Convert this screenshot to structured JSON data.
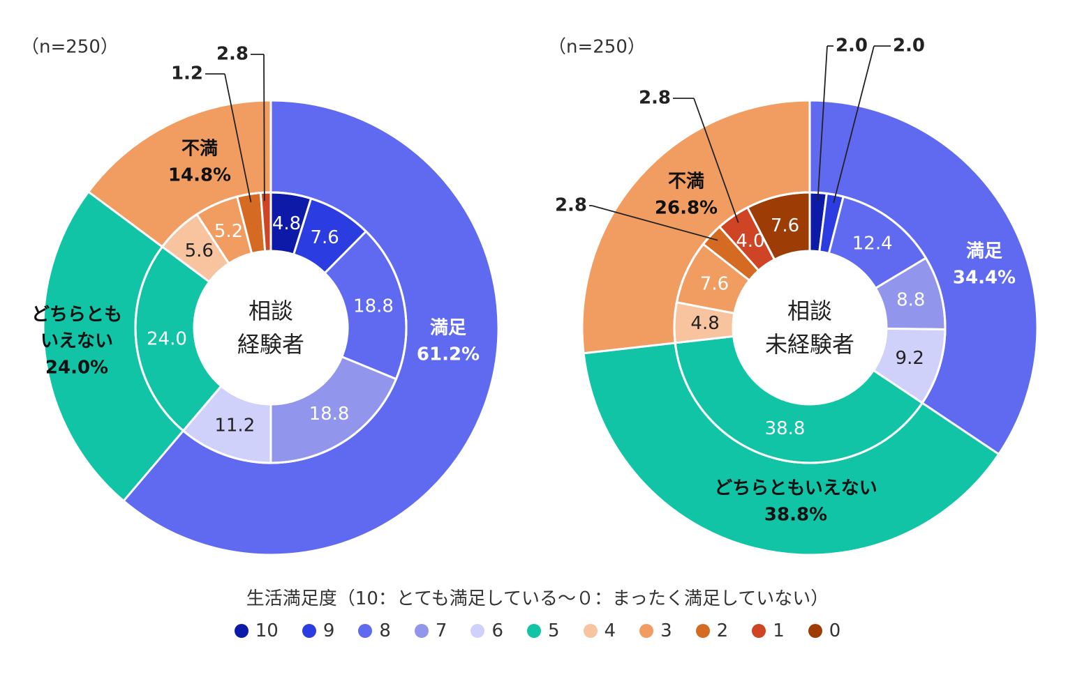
{
  "colors": {
    "10": "#0d1aa8",
    "9": "#2b3de0",
    "8": "#5f6af0",
    "7": "#9196ec",
    "6": "#cfd1fa",
    "5": "#12c4a6",
    "4": "#f8c4a0",
    "3": "#f19d62",
    "2": "#d56b22",
    "1": "#cf4424",
    "0": "#9e3c06"
  },
  "legend": {
    "title": "生活満足度（10：とても満足している〜０：まったく満足していない）",
    "items": [
      "10",
      "9",
      "8",
      "7",
      "6",
      "5",
      "4",
      "3",
      "2",
      "1",
      "0"
    ]
  },
  "chart_data": [
    {
      "type": "pie",
      "variant": "nested-donut",
      "n_label": "（n=250）",
      "center_label": [
        "相談",
        "経験者"
      ],
      "outer": [
        {
          "name": "満足",
          "value": 61.2,
          "label": "61.2%",
          "color": "#5f6af0"
        },
        {
          "name": "どちらともいえない",
          "label_lines": [
            "どちらとも",
            "いえない"
          ],
          "value": 24.0,
          "label": "24.0%",
          "color": "#12c4a6"
        },
        {
          "name": "不満",
          "value": 14.8,
          "label": "14.8%",
          "color": "#f19d62"
        }
      ],
      "inner": [
        {
          "score": "10",
          "value": 4.8,
          "label": "4.8"
        },
        {
          "score": "9",
          "value": 7.6,
          "label": "7.6"
        },
        {
          "score": "8",
          "value": 18.8,
          "label": "18.8"
        },
        {
          "score": "7",
          "value": 18.8,
          "label": "18.8"
        },
        {
          "score": "6",
          "value": 11.2,
          "label": "11.2"
        },
        {
          "score": "5",
          "value": 24.0,
          "label": "24.0"
        },
        {
          "score": "4",
          "value": 5.6,
          "label": "5.6"
        },
        {
          "score": "3",
          "value": 5.2,
          "label": "5.2"
        },
        {
          "score": "2",
          "value": 2.8,
          "label": "2.8"
        },
        {
          "score": "1",
          "value": 1.2,
          "label": "1.2"
        }
      ]
    },
    {
      "type": "pie",
      "variant": "nested-donut",
      "n_label": "（n=250）",
      "center_label": [
        "相談",
        "未経験者"
      ],
      "outer": [
        {
          "name": "満足",
          "value": 34.4,
          "label": "34.4%",
          "color": "#5f6af0"
        },
        {
          "name": "どちらともいえない",
          "label_lines": [
            "どちらともいえない"
          ],
          "value": 38.8,
          "label": "38.8%",
          "color": "#12c4a6"
        },
        {
          "name": "不満",
          "value": 26.8,
          "label": "26.8%",
          "color": "#f19d62"
        }
      ],
      "inner": [
        {
          "score": "10",
          "value": 2.0,
          "label": "2.0"
        },
        {
          "score": "9",
          "value": 2.0,
          "label": "2.0"
        },
        {
          "score": "8",
          "value": 12.4,
          "label": "12.4"
        },
        {
          "score": "7",
          "value": 8.8,
          "label": "8.8"
        },
        {
          "score": "6",
          "value": 9.2,
          "label": "9.2"
        },
        {
          "score": "5",
          "value": 38.8,
          "label": "38.8"
        },
        {
          "score": "4",
          "value": 4.8,
          "label": "4.8"
        },
        {
          "score": "3",
          "value": 7.6,
          "label": "7.6"
        },
        {
          "score": "2",
          "value": 2.8,
          "label": "2.8"
        },
        {
          "score": "1",
          "value": 4.0,
          "label": "4.0"
        },
        {
          "score": "0",
          "value": 7.6,
          "label": "7.6"
        }
      ]
    }
  ]
}
